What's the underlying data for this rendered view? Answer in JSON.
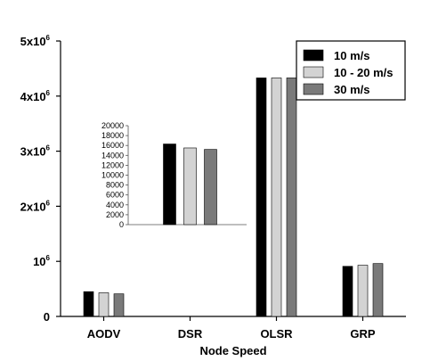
{
  "chart_data": {
    "type": "bar",
    "categories": [
      "AODV",
      "DSR",
      "OLSR",
      "GRP"
    ],
    "series": [
      {
        "name": "10 m/s",
        "color": "#000000",
        "values": [
          450000,
          16300,
          4330000,
          910000
        ]
      },
      {
        "name": "10 - 20 m/s",
        "color": "#d3d3d3",
        "values": [
          430000,
          15500,
          4330000,
          930000
        ]
      },
      {
        "name": "30 m/s",
        "color": "#7a7a7a",
        "values": [
          410000,
          15200,
          4330000,
          960000
        ]
      }
    ],
    "xlabel": "Node Speed",
    "ylim": [
      0,
      5000000
    ],
    "y_ticks": [
      {
        "value": 0,
        "base": "0",
        "sup": ""
      },
      {
        "value": 1000000,
        "base": "10",
        "sup": "6"
      },
      {
        "value": 2000000,
        "base": "2x10",
        "sup": "6"
      },
      {
        "value": 3000000,
        "base": "3x10",
        "sup": "6"
      },
      {
        "value": 4000000,
        "base": "4x10",
        "sup": "6"
      },
      {
        "value": 5000000,
        "base": "5x10",
        "sup": "6"
      }
    ],
    "legend_position": "top-right",
    "inset": {
      "category": "DSR",
      "ylim": [
        0,
        20000
      ],
      "y_ticks": [
        "0",
        "2000",
        "4000",
        "6000",
        "8000",
        "10000",
        "12000",
        "14000",
        "16000",
        "18000",
        "20000"
      ]
    }
  }
}
